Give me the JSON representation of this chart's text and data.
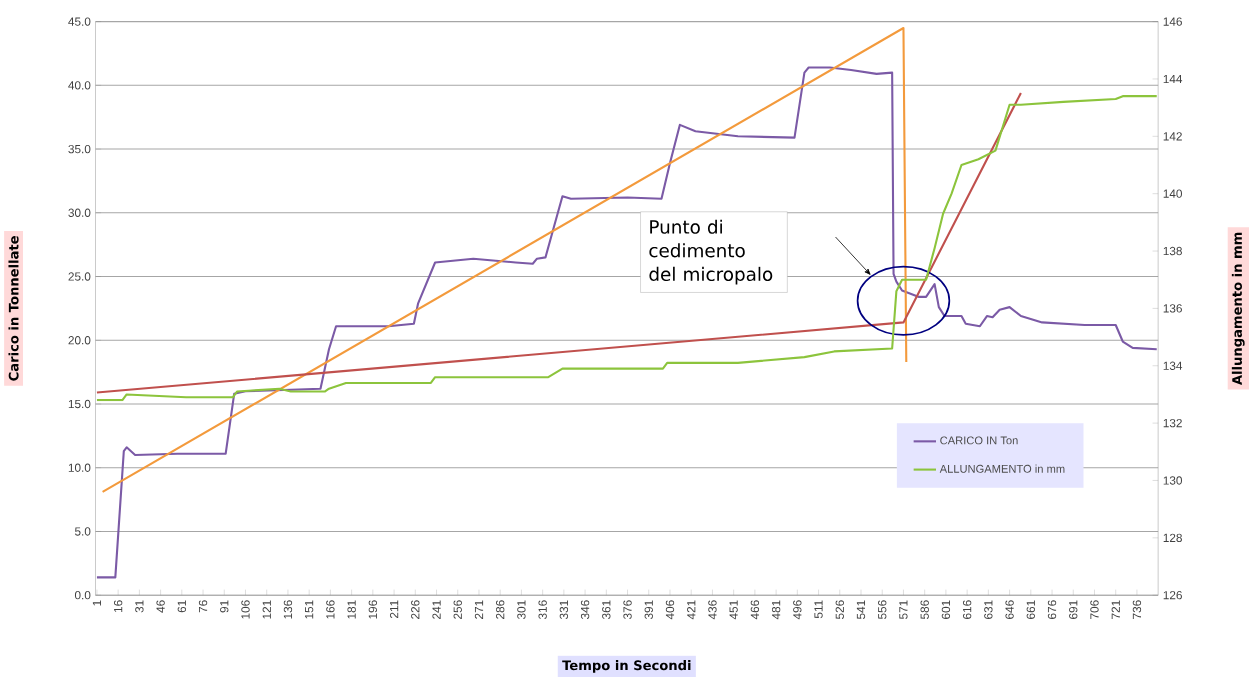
{
  "chart_data": {
    "type": "line",
    "xlabel": "Tempo in Secondi",
    "ylabel": "Carico in Tonnellate",
    "y2label": "Allungamento in mm",
    "xlim": [
      0,
      751
    ],
    "xticks": [
      1,
      16,
      31,
      46,
      61,
      76,
      91,
      106,
      121,
      136,
      151,
      166,
      181,
      196,
      211,
      226,
      241,
      256,
      271,
      286,
      301,
      316,
      331,
      346,
      361,
      376,
      391,
      406,
      421,
      436,
      451,
      466,
      481,
      496,
      511,
      526,
      541,
      556,
      571,
      586,
      601,
      616,
      631,
      646,
      661,
      676,
      691,
      706,
      721,
      736
    ],
    "ylim": [
      0,
      45
    ],
    "yticks": [
      {
        "value": 0,
        "label": "0.0"
      },
      {
        "value": 5,
        "label": "5.0"
      },
      {
        "value": 10,
        "label": "10.0"
      },
      {
        "value": 15,
        "label": "15.0"
      },
      {
        "value": 20,
        "label": "20.0"
      },
      {
        "value": 25,
        "label": "25.0"
      },
      {
        "value": 30,
        "label": "30.0"
      },
      {
        "value": 35,
        "label": "35.0"
      },
      {
        "value": 40,
        "label": "40.0"
      },
      {
        "value": 45,
        "label": "45.0"
      }
    ],
    "y2lim": [
      126,
      146
    ],
    "y2ticks": [
      126,
      128,
      130,
      132,
      134,
      136,
      138,
      140,
      142,
      144,
      146
    ],
    "grid": "y",
    "legend": "bottom right",
    "marker": "none",
    "line_style": "solid",
    "annotations": [
      "Punto di cedimento del micropalo"
    ],
    "series": [
      {
        "name": "CARICO IN Ton",
        "color": "#7b5aa6",
        "x": [
          1,
          14,
          20,
          22,
          28,
          58,
          92,
          98,
          106,
          159,
          165,
          170,
          207,
          225,
          228,
          240,
          267,
          297,
          309,
          312,
          318,
          324,
          330,
          336,
          376,
          400,
          406,
          413,
          424,
          454,
          494,
          501,
          504,
          519,
          534,
          552,
          563,
          564,
          566,
          570,
          582,
          587,
          593,
          596,
          600,
          612,
          615,
          625,
          630,
          634,
          639,
          646,
          654,
          669,
          699,
          721,
          726,
          733,
          750
        ],
        "values": [
          1.4,
          1.4,
          11.3,
          11.6,
          11.0,
          11.1,
          11.1,
          15.8,
          16.0,
          16.2,
          19.3,
          21.1,
          21.1,
          21.3,
          22.9,
          26.1,
          26.4,
          26.1,
          26.0,
          26.4,
          26.5,
          28.9,
          31.3,
          31.1,
          31.2,
          31.1,
          33.9,
          36.9,
          36.4,
          36.0,
          35.9,
          41.0,
          41.4,
          41.4,
          41.2,
          40.9,
          41.0,
          25.2,
          24.6,
          23.9,
          23.4,
          23.4,
          24.4,
          22.6,
          21.9,
          21.9,
          21.3,
          21.1,
          21.9,
          21.8,
          22.4,
          22.6,
          21.9,
          21.4,
          21.2,
          21.2,
          19.9,
          19.4,
          19.3
        ]
      },
      {
        "name": "ALLUNGAMENTO in mm",
        "color": "#8cc43c",
        "axis": "y2",
        "x": [
          1,
          19,
          22,
          64,
          97,
          100,
          130,
          138,
          162,
          165,
          177,
          237,
          240,
          320,
          330,
          376,
          401,
          404,
          454,
          501,
          522,
          563,
          566,
          570,
          587,
          593,
          599,
          605,
          612,
          624,
          636,
          646,
          654,
          684,
          721,
          726,
          750
        ],
        "values": [
          132.8,
          132.8,
          133.0,
          132.9,
          132.9,
          133.1,
          133.2,
          133.1,
          133.1,
          133.2,
          133.4,
          133.4,
          133.6,
          133.6,
          133.9,
          133.9,
          133.9,
          134.1,
          134.1,
          134.3,
          134.5,
          134.6,
          136.6,
          137.0,
          137.0,
          138.1,
          139.3,
          140.0,
          141.0,
          141.2,
          141.5,
          143.1,
          143.1,
          143.2,
          143.3,
          143.4,
          143.4
        ]
      },
      {
        "type": "line",
        "color": "#f39a3c",
        "x": [
          5,
          571,
          573
        ],
        "values": [
          8.1,
          44.5,
          18.3
        ]
      },
      {
        "type": "line",
        "color": "#c0504d",
        "x": [
          1,
          571,
          654
        ],
        "values": [
          15.9,
          21.4,
          39.4
        ]
      }
    ]
  }
}
